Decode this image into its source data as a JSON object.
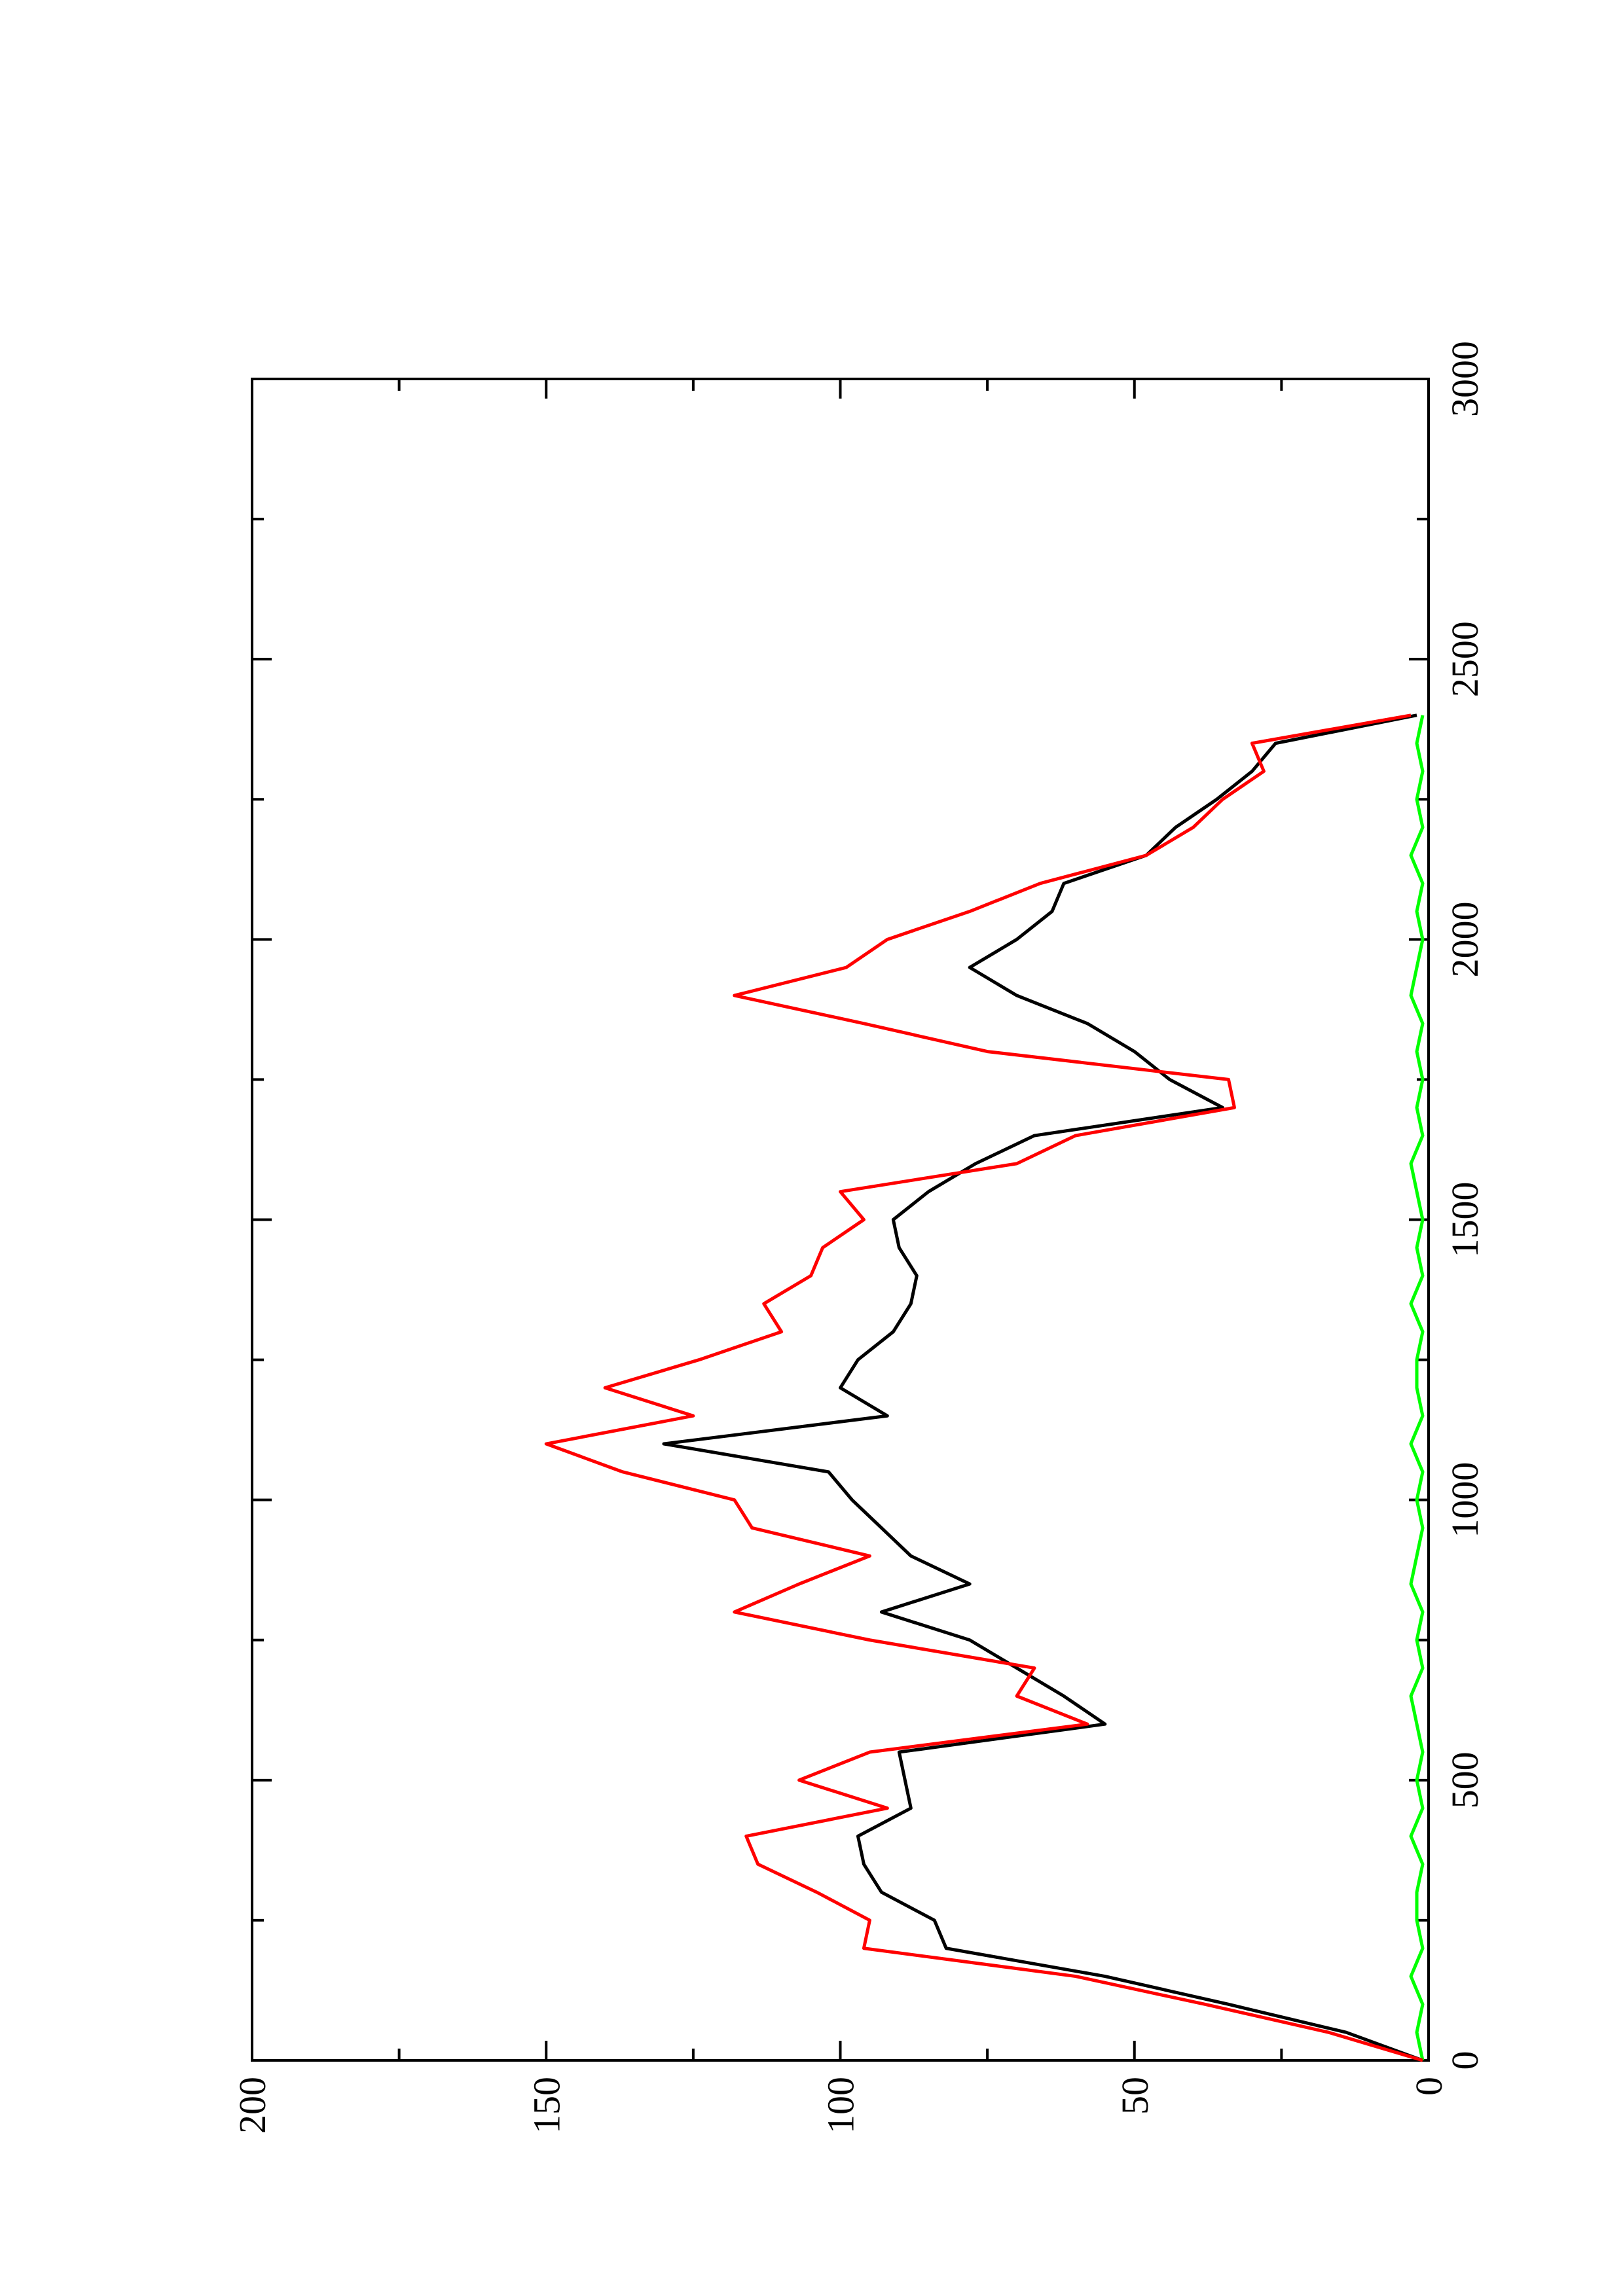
{
  "chart_data": {
    "type": "line",
    "x": [
      0,
      50,
      100,
      150,
      200,
      250,
      300,
      350,
      400,
      450,
      500,
      550,
      600,
      650,
      700,
      750,
      800,
      850,
      900,
      950,
      1000,
      1050,
      1100,
      1150,
      1200,
      1250,
      1300,
      1350,
      1400,
      1450,
      1500,
      1550,
      1600,
      1650,
      1700,
      1750,
      1800,
      1850,
      1900,
      1950,
      2000,
      2050,
      2100,
      2150,
      2200,
      2250,
      2300,
      2350,
      2400
    ],
    "series": [
      {
        "color": "#000000",
        "values": [
          1,
          14,
          34,
          55,
          82,
          84,
          93,
          96,
          97,
          88,
          89,
          90,
          55,
          62,
          70,
          78,
          93,
          78,
          88,
          93,
          98,
          102,
          130,
          92,
          100,
          97,
          91,
          88,
          87,
          90,
          91,
          85,
          77,
          67,
          35,
          44,
          50,
          58,
          70,
          78,
          70,
          64,
          62,
          48,
          43,
          36,
          30,
          26,
          2
        ]
      },
      {
        "color": "#ff0000",
        "values": [
          1,
          17,
          38,
          60,
          96,
          95,
          104,
          114,
          116,
          92,
          107,
          95,
          58,
          70,
          67,
          95,
          118,
          107,
          95,
          115,
          118,
          137,
          150,
          125,
          140,
          124,
          110,
          113,
          105,
          103,
          96,
          100,
          70,
          60,
          33,
          34,
          75,
          96,
          118,
          99,
          92,
          78,
          66,
          48,
          40,
          35,
          28,
          30,
          3
        ]
      },
      {
        "color": "#00ff00",
        "values": [
          1,
          2,
          1,
          3,
          1,
          2,
          2,
          1,
          3,
          1,
          2,
          1,
          2,
          3,
          1,
          2,
          1,
          3,
          2,
          1,
          2,
          1,
          3,
          1,
          2,
          2,
          1,
          3,
          1,
          2,
          1,
          2,
          3,
          1,
          2,
          1,
          2,
          1,
          3,
          2,
          1,
          2,
          1,
          3,
          1,
          2,
          1,
          2,
          1
        ]
      }
    ],
    "xlim": [
      0,
      3000
    ],
    "xticks": [
      0,
      500,
      1000,
      1500,
      2000,
      2500,
      3000
    ],
    "ylim": [
      0,
      200
    ],
    "yticks": [
      0,
      50,
      100,
      150,
      200
    ]
  }
}
